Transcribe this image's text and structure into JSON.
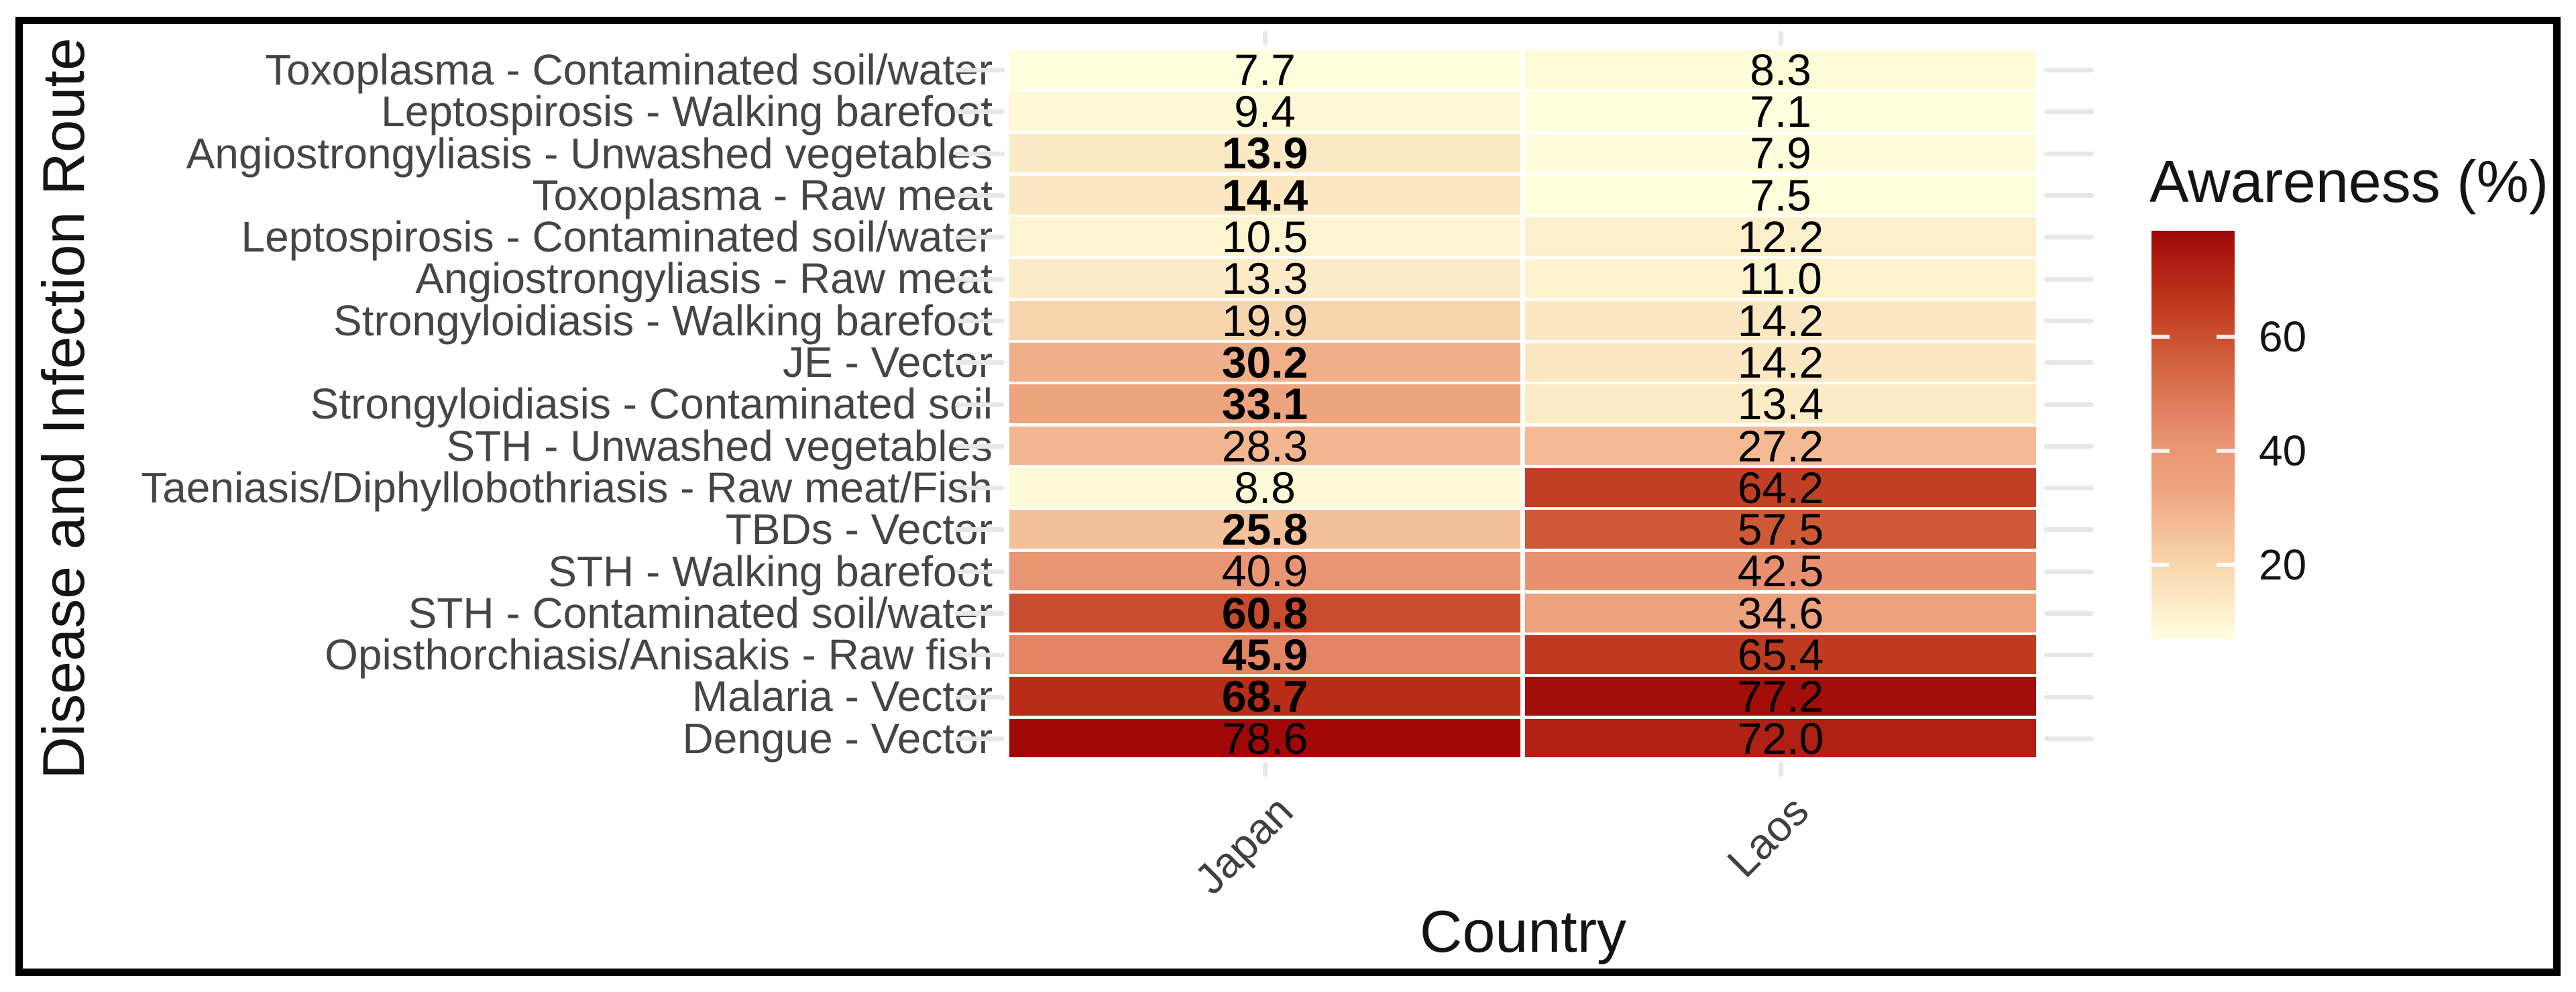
{
  "figure": {
    "background": "#ffffff",
    "border_color": "#000000",
    "legend": {
      "title": "Awareness (%)",
      "ticks": [
        60,
        40,
        20
      ]
    }
  },
  "chart_data": {
    "type": "heatmap",
    "title": "",
    "xlabel": "Country",
    "ylabel": "Disease and Infection Route",
    "legend_title": "Awareness (%)",
    "legend_ticks": [
      60,
      40,
      20
    ],
    "legend_position": "right",
    "grid": "stubs-outside-tiles",
    "columns": [
      "Japan",
      "Laos"
    ],
    "rows": [
      "Toxoplasma - Contaminated soil/water",
      "Leptospirosis - Walking barefoot",
      "Angiostrongyliasis - Unwashed vegetables",
      "Toxoplasma - Raw meat",
      "Leptospirosis - Contaminated soil/water",
      "Angiostrongyliasis - Raw meat",
      "Strongyloidiasis - Walking barefoot",
      "JE - Vector",
      "Strongyloidiasis - Contaminated soil",
      "STH - Unwashed vegetables",
      "Taeniasis/Diphyllobothriasis - Raw meat/Fish",
      "TBDs - Vector",
      "STH - Walking barefoot",
      "STH - Contaminated soil/water",
      "Opisthorchiasis/Anisakis - Raw fish",
      "Malaria - Vector",
      "Dengue - Vector"
    ],
    "series": [
      {
        "name": "Japan",
        "values": [
          7.7,
          9.4,
          13.9,
          14.4,
          10.5,
          13.3,
          19.9,
          30.2,
          33.1,
          28.3,
          8.8,
          25.8,
          40.9,
          60.8,
          45.9,
          68.7,
          78.6
        ],
        "bold": [
          false,
          false,
          true,
          true,
          false,
          false,
          false,
          true,
          true,
          false,
          false,
          true,
          false,
          true,
          true,
          true,
          false
        ]
      },
      {
        "name": "Laos",
        "values": [
          8.3,
          7.1,
          7.9,
          7.5,
          12.2,
          11.0,
          14.2,
          14.2,
          13.4,
          27.2,
          64.2,
          57.5,
          42.5,
          34.6,
          65.4,
          77.2,
          72.0
        ],
        "bold": [
          false,
          false,
          false,
          false,
          false,
          false,
          false,
          false,
          false,
          false,
          false,
          false,
          false,
          false,
          false,
          false,
          false
        ]
      }
    ],
    "color_scale": {
      "domain": [
        7.1,
        78.6
      ],
      "stops": [
        [
          0.0,
          "#FFFFDE"
        ],
        [
          0.18,
          "#F8D6AD"
        ],
        [
          0.36,
          "#EFA580"
        ],
        [
          0.5,
          "#E89070"
        ],
        [
          0.71,
          "#CD5835"
        ],
        [
          0.86,
          "#B92D18"
        ],
        [
          1.0,
          "#A00808"
        ]
      ]
    },
    "colors": {
      "grid_stub": "#e7e7e7",
      "axis_text": "#454545",
      "title_text": "#141414",
      "cell_text": "#000000"
    }
  }
}
